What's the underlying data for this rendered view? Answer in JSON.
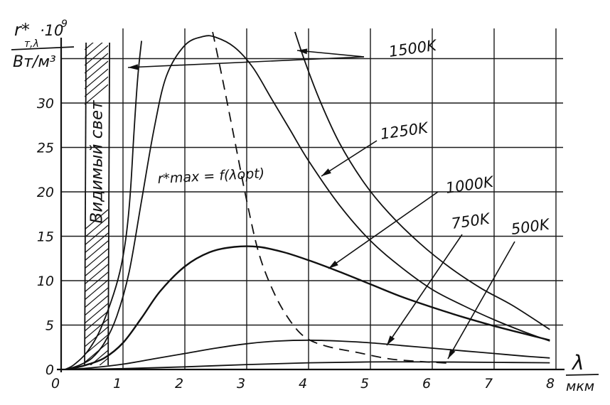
{
  "chart_data": {
    "type": "line",
    "title": "",
    "ylabel": {
      "symbol": "r*",
      "subscript": "т,λ",
      "multiplier": "·10",
      "exponent": "9",
      "unit": "Вт/м³"
    },
    "xlabel": {
      "symbol": "λ",
      "unit": "мкм"
    },
    "xlim": [
      0,
      8
    ],
    "ylim": [
      0,
      38
    ],
    "x_ticks": [
      "0",
      "1",
      "2",
      "3",
      "4",
      "5",
      "6",
      "7",
      "8"
    ],
    "y_ticks": [
      "0",
      "5",
      "10",
      "15",
      "20",
      "25",
      "30"
    ],
    "grid": true,
    "visible_band": {
      "label": "Видимый свет",
      "x_range": [
        0.38,
        0.76
      ]
    },
    "envelope_label": "r*max = f(λopt)",
    "envelope": {
      "x": [
        2.45,
        2.6,
        2.8,
        3.0,
        3.2,
        3.45,
        3.7,
        3.95,
        4.3,
        4.8,
        5.3,
        5.8,
        6.3
      ],
      "y": [
        38,
        33,
        26,
        19,
        13,
        8.5,
        5.5,
        3.6,
        2.6,
        1.9,
        1.2,
        0.9,
        0.7
      ]
    },
    "series": [
      {
        "name": "1500K",
        "x": [
          0.06,
          0.2,
          0.4,
          0.6,
          0.8,
          0.95,
          1.05,
          1.12,
          1.18,
          1.24,
          1.3
        ],
        "y": [
          0,
          0.5,
          1.8,
          4,
          7.5,
          11,
          15,
          20,
          27,
          33,
          37
        ]
      },
      {
        "name": "1250K",
        "x": [
          0.08,
          0.3,
          0.5,
          0.7,
          0.9,
          1.1,
          1.3,
          1.5,
          1.7,
          2.0,
          2.3,
          2.5,
          2.8,
          3.1,
          3.4,
          3.7,
          4.0,
          4.5,
          5.0,
          5.5,
          6.0,
          6.5,
          7.0,
          7.5,
          7.9
        ],
        "y": [
          0,
          0.5,
          1.3,
          3,
          6,
          11,
          19,
          27,
          33,
          36.5,
          37.5,
          37.4,
          36.3,
          34,
          30.5,
          27,
          23.5,
          18.5,
          14.5,
          11.5,
          9,
          7.2,
          5.6,
          4.2,
          3.2
        ]
      },
      {
        "name": "1000K",
        "x": [
          0.1,
          0.4,
          0.7,
          1.0,
          1.3,
          1.6,
          2.0,
          2.4,
          2.8,
          3.2,
          3.6,
          4.0,
          4.5,
          5.0,
          5.5,
          6.0,
          6.5,
          7.0,
          7.5,
          7.9
        ],
        "y": [
          0,
          0.5,
          1.3,
          3,
          5.8,
          8.8,
          11.6,
          13.2,
          13.8,
          13.8,
          13.2,
          12.3,
          11,
          9.6,
          8.2,
          7,
          5.9,
          4.9,
          4.0,
          3.3
        ]
      },
      {
        "name": "750K",
        "x": [
          0.1,
          0.5,
          1.0,
          1.5,
          2.0,
          2.5,
          3.0,
          3.5,
          4.0,
          4.5,
          5.0,
          5.5,
          6.0,
          6.5,
          7.0,
          7.5,
          7.9
        ],
        "y": [
          0,
          0.2,
          0.6,
          1.2,
          1.8,
          2.4,
          2.9,
          3.2,
          3.3,
          3.2,
          3.0,
          2.7,
          2.4,
          2.1,
          1.8,
          1.5,
          1.3
        ]
      },
      {
        "name": "500K",
        "x": [
          0.1,
          1.0,
          2.0,
          3.0,
          4.0,
          5.0,
          6.0,
          7.0,
          7.9
        ],
        "y": [
          0,
          0.1,
          0.3,
          0.55,
          0.75,
          0.85,
          0.85,
          0.8,
          0.75
        ]
      }
    ]
  }
}
